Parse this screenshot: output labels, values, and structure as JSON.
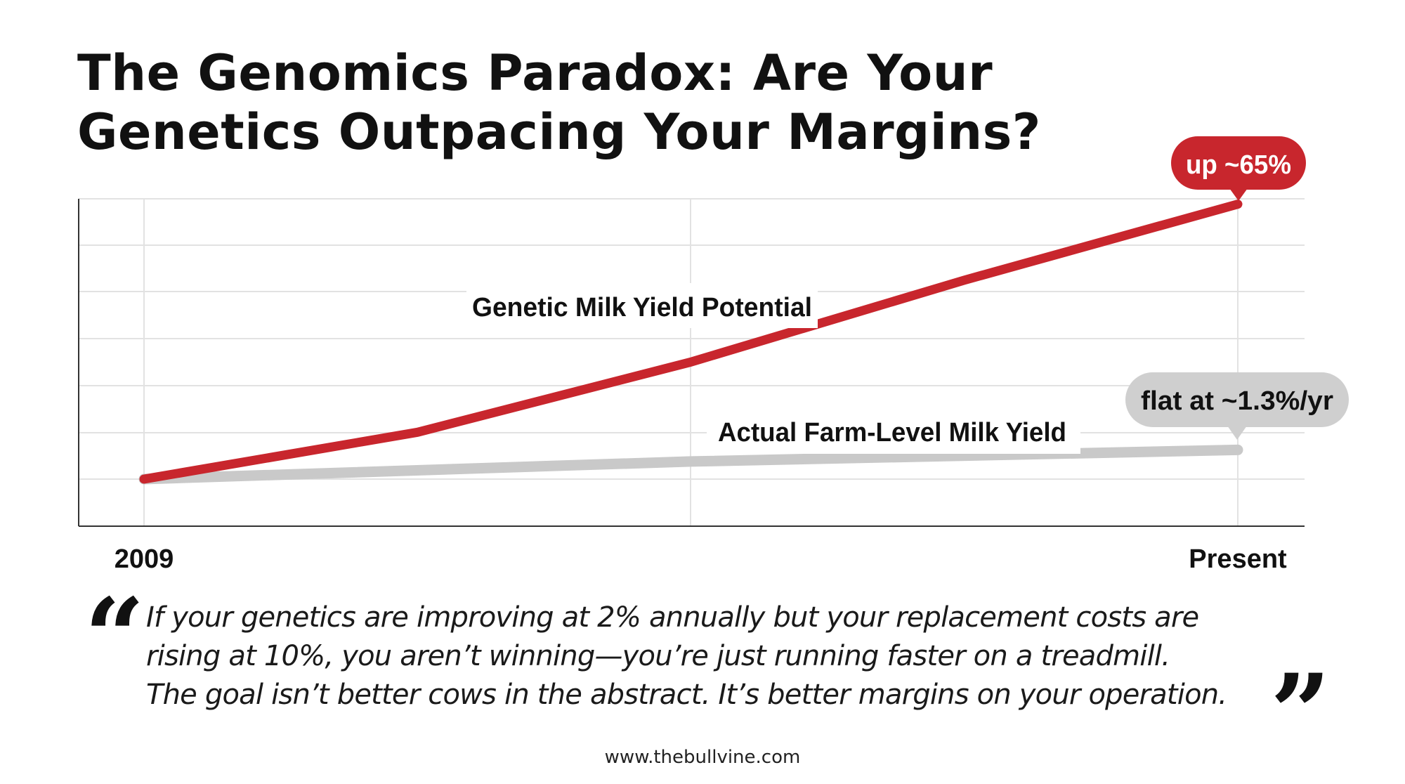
{
  "title": {
    "line1": "The Genomics Paradox: Are Your",
    "line2": "Genetics Outpacing Your Margins?"
  },
  "chart_data": {
    "type": "line",
    "x_ticks": [
      "2009",
      "Present"
    ],
    "xlim": [
      0,
      100
    ],
    "ylim": [
      0,
      100
    ],
    "grid": true,
    "series": [
      {
        "name": "Genetic Milk Yield Potential",
        "color": "#c8262d",
        "x": [
          0,
          25,
          50,
          75,
          100
        ],
        "y": [
          0,
          15.4,
          38.5,
          65.4,
          90.4
        ]
      },
      {
        "name": "Actual Farm-Level Milk Yield",
        "color": "#c9c9c9",
        "x": [
          0,
          50,
          100
        ],
        "y": [
          0,
          5.8,
          9.6
        ]
      }
    ],
    "annotations": [
      {
        "text": "up ~65%",
        "color": "#c8262d",
        "text_color": "#ffffff"
      },
      {
        "text": "flat at ~1.3%/yr",
        "color": "#cfcfcf",
        "text_color": "#111111"
      }
    ]
  },
  "quote": {
    "line1": "If your genetics are improving at 2% annually but your replacement costs are",
    "line2": "rising at 10%, you aren’t winning—you’re just running faster on a treadmill.",
    "line3": "The goal isn’t better cows in the abstract. It’s better margins on your operation.",
    "open_mark": "“",
    "close_mark": "”"
  },
  "footer": {
    "url": "www.thebullvine.com"
  }
}
